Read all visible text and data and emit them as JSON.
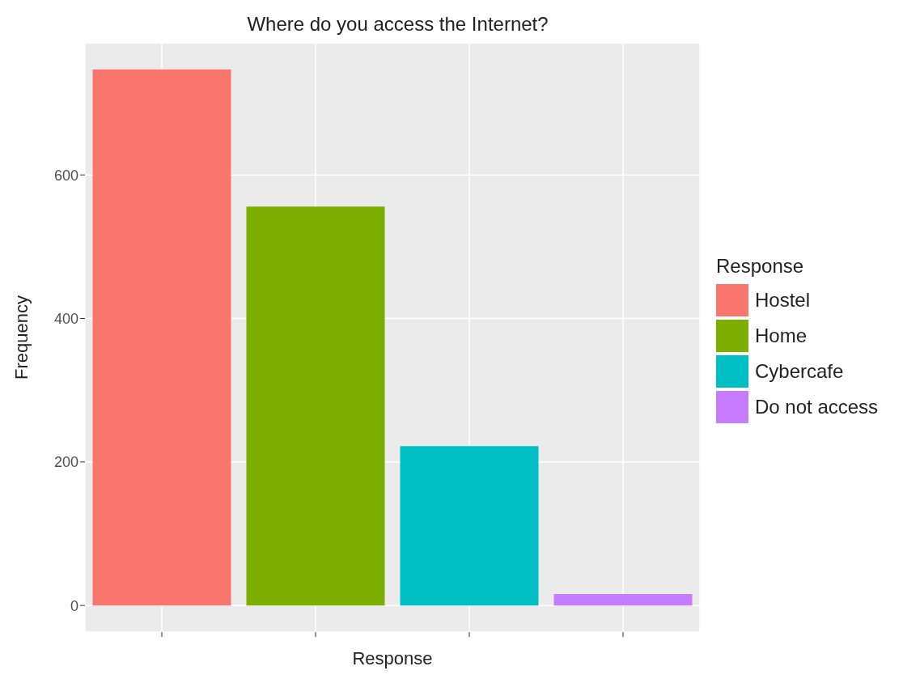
{
  "chart_data": {
    "type": "bar",
    "title": "Where do you access the Internet?",
    "xlabel": "Response",
    "ylabel": "Frequency",
    "legend_title": "Response",
    "categories": [
      null,
      null,
      null,
      null
    ],
    "stacked": true,
    "series": [
      {
        "name": "Hostel",
        "color": "#f8766d",
        "values": [
          747,
          null,
          null,
          null
        ]
      },
      {
        "name": "Home",
        "color": "#7cae00",
        "values": [
          null,
          556,
          null,
          null
        ]
      },
      {
        "name": "Cybercafe",
        "color": "#00bfc4",
        "values": [
          null,
          null,
          222,
          null
        ]
      },
      {
        "name": "Do not access",
        "color": "#c77cff",
        "values": [
          null,
          null,
          null,
          16
        ]
      }
    ],
    "ylim": [
      -37,
      784
    ],
    "yticks": [
      0,
      200,
      400,
      600
    ],
    "grid": true,
    "legend": "right"
  }
}
